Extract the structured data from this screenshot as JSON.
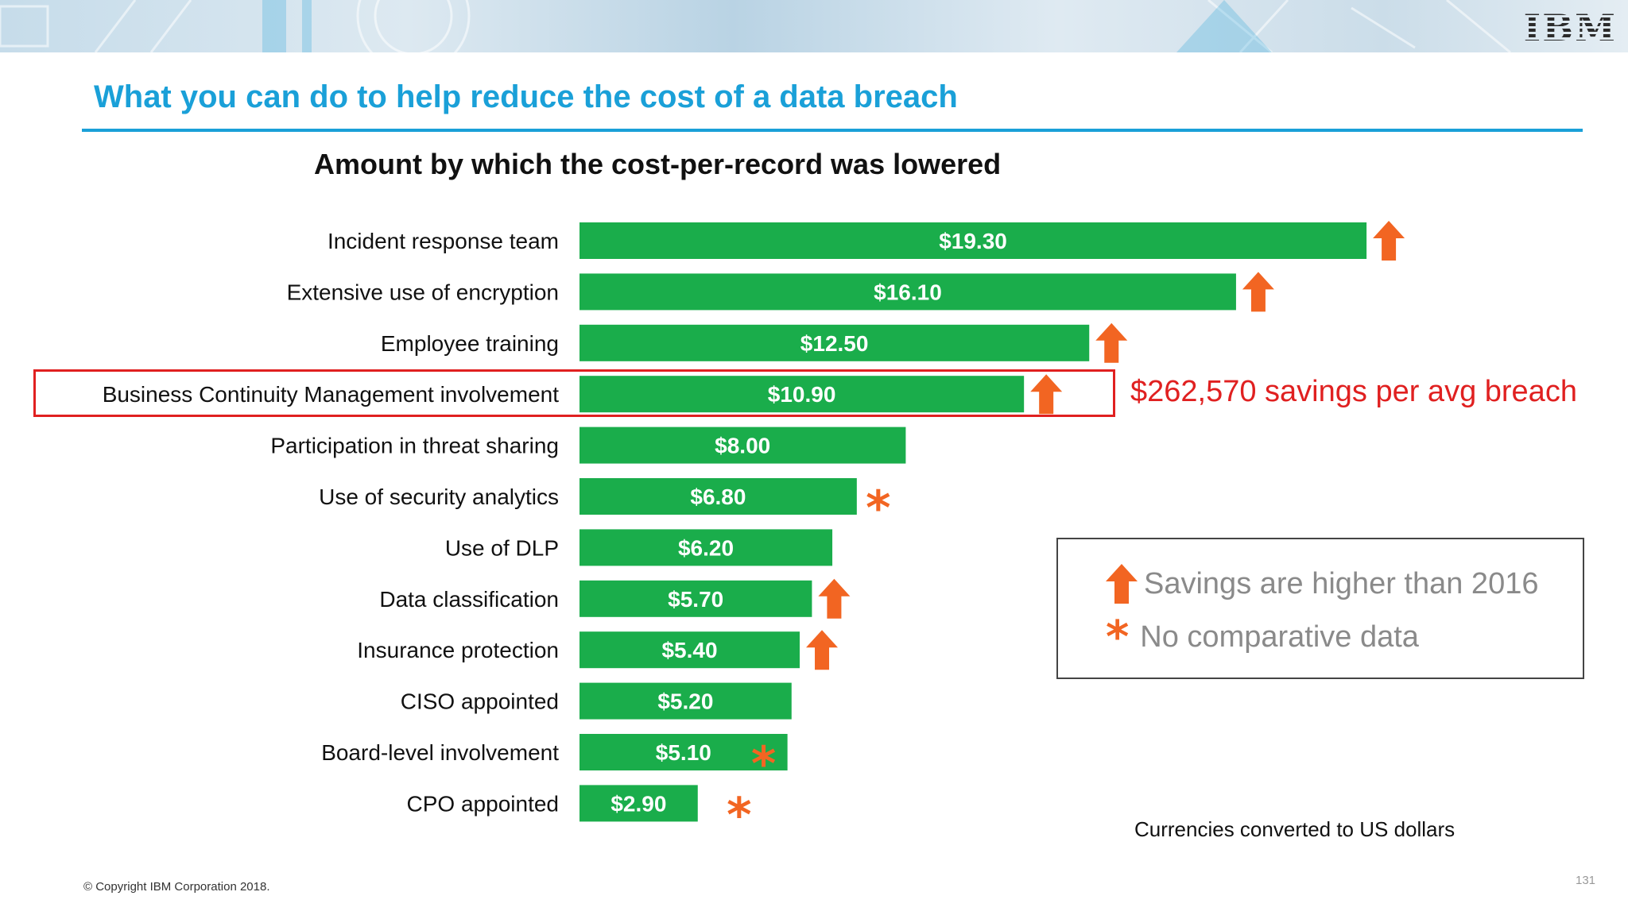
{
  "header": {
    "logo_text": "IBM",
    "banner_colors": {
      "base": "#c6dcea",
      "accent": "#1aa0d8"
    }
  },
  "slide": {
    "title": "What you can do to help reduce the cost of a data breach",
    "copyright": "© Copyright IBM Corporation 2018.",
    "page_number": "131",
    "currency_note": "Currencies converted to US dollars"
  },
  "callout": {
    "highlighted_category": "Business Continuity Management involvement",
    "text": "$262,570 savings per avg breach",
    "color": "#e02020"
  },
  "legend": {
    "arrow_text": "Savings are higher than 2016",
    "star_glyph": "*",
    "star_text": "No comparative data",
    "marker_color": "#f26522"
  },
  "chart_data": {
    "type": "bar",
    "orientation": "horizontal",
    "title": "Amount by which the cost-per-record was lowered",
    "bar_color": "#1aad4b",
    "categories": [
      "Incident response team",
      "Extensive use of encryption",
      "Employee training",
      "Business Continuity Management involvement",
      "Participation in threat sharing",
      "Use of security analytics",
      "Use of DLP",
      "Data classification",
      "Insurance protection",
      "CISO appointed",
      "Board-level involvement",
      "CPO appointed"
    ],
    "values": [
      19.3,
      16.1,
      12.5,
      10.9,
      8.0,
      6.8,
      6.2,
      5.7,
      5.4,
      5.2,
      5.1,
      2.9
    ],
    "value_labels": [
      "$19.30",
      "$16.10",
      "$12.50",
      "$10.90",
      "$8.00",
      "$6.80",
      "$6.20",
      "$5.70",
      "$5.40",
      "$5.20",
      "$5.10",
      "$2.90"
    ],
    "markers": [
      "arrow",
      "arrow",
      "arrow",
      "arrow",
      "none",
      "star",
      "none",
      "arrow",
      "arrow",
      "none",
      "star",
      "star"
    ],
    "xlim": [
      0,
      20
    ]
  }
}
